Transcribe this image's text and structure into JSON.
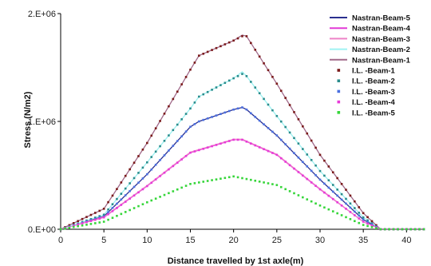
{
  "chart_data": {
    "type": "line",
    "xlabel": "Distance travelled by 1st axle(m)",
    "ylabel": "Stress (N/m2)",
    "xlim": [
      0,
      42
    ],
    "ylim": [
      0,
      2000000
    ],
    "x_ticks": [
      0,
      5,
      10,
      15,
      20,
      25,
      30,
      35,
      40
    ],
    "y_ticks": [
      {
        "value": 0,
        "label": "0.E+00"
      },
      {
        "value": 1000000,
        "label": "1.E+06"
      },
      {
        "value": 2000000,
        "label": "2.E+06"
      }
    ],
    "grid": false,
    "legend_position": "top-right",
    "series": [
      {
        "name": "Nastran-Beam-5",
        "style": "line",
        "color": "#2b2f8f",
        "x": [
          0,
          5,
          10,
          15,
          16,
          20,
          21,
          21.5,
          25,
          30,
          35,
          37,
          42
        ],
        "y": [
          0,
          120000,
          510000,
          950000,
          1000000,
          1110000,
          1130000,
          1110000,
          870000,
          460000,
          90000,
          0,
          0
        ]
      },
      {
        "name": "Nastran-Beam-4",
        "style": "line",
        "color": "#e23ad6",
        "x": [
          0,
          5,
          10,
          15,
          20,
          21,
          25,
          30,
          35,
          37,
          42
        ],
        "y": [
          0,
          110000,
          400000,
          710000,
          830000,
          830000,
          690000,
          370000,
          70000,
          0,
          0
        ]
      },
      {
        "name": "Nastran-Beam-3",
        "style": "line",
        "color": "#ee82c8",
        "x": [
          0,
          5,
          10,
          15,
          20,
          21,
          25,
          30,
          35,
          37,
          42
        ],
        "y": [
          0,
          115000,
          405000,
          715000,
          835000,
          835000,
          695000,
          375000,
          70000,
          0,
          0
        ]
      },
      {
        "name": "Nastran-Beam-2",
        "style": "line",
        "color": "#9ff2f2",
        "x": [
          0,
          5,
          10,
          15,
          16,
          20,
          21,
          21.5,
          25,
          30,
          35,
          37,
          42
        ],
        "y": [
          0,
          135000,
          620000,
          1120000,
          1230000,
          1400000,
          1460000,
          1420000,
          1050000,
          540000,
          110000,
          0,
          0
        ]
      },
      {
        "name": "Nastran-Beam-1",
        "style": "line",
        "color": "#a16a8a",
        "x": [
          0,
          5,
          10,
          15,
          16,
          20,
          21,
          21.5,
          25,
          30,
          35,
          37,
          42
        ],
        "y": [
          0,
          190000,
          800000,
          1480000,
          1610000,
          1750000,
          1800000,
          1790000,
          1350000,
          690000,
          150000,
          0,
          0
        ]
      },
      {
        "name": "I.L. -Beam-1",
        "style": "marker",
        "color": "#7a1a1a",
        "x": [
          0,
          5,
          10,
          15,
          16,
          20,
          21,
          21.5,
          25,
          30,
          35,
          37,
          42
        ],
        "y": [
          0,
          190000,
          800000,
          1480000,
          1610000,
          1750000,
          1790000,
          1790000,
          1350000,
          690000,
          150000,
          0,
          0
        ]
      },
      {
        "name": "I.L. -Beam-2",
        "style": "marker",
        "color": "#2a8c8c",
        "x": [
          0,
          5,
          10,
          15,
          16,
          20,
          21,
          21.5,
          25,
          30,
          35,
          37,
          42
        ],
        "y": [
          0,
          135000,
          620000,
          1120000,
          1230000,
          1400000,
          1440000,
          1420000,
          1050000,
          540000,
          110000,
          0,
          0
        ]
      },
      {
        "name": "I.L. -Beam-3",
        "style": "marker",
        "color": "#4a6fe0",
        "x": [
          0,
          5,
          10,
          15,
          16,
          20,
          21,
          21.5,
          25,
          30,
          35,
          37,
          42
        ],
        "y": [
          0,
          120000,
          510000,
          950000,
          1000000,
          1110000,
          1130000,
          1110000,
          870000,
          460000,
          90000,
          0,
          0
        ]
      },
      {
        "name": "I.L. -Beam-4",
        "style": "marker",
        "color": "#e83ad8",
        "x": [
          0,
          5,
          10,
          15,
          20,
          21,
          25,
          30,
          35,
          37,
          42
        ],
        "y": [
          0,
          110000,
          400000,
          710000,
          830000,
          830000,
          690000,
          370000,
          70000,
          0,
          0
        ]
      },
      {
        "name": "I.L. -Beam-5",
        "style": "marker",
        "color": "#36d63a",
        "x": [
          0,
          5,
          10,
          15,
          20,
          25,
          30,
          35,
          37,
          42
        ],
        "y": [
          0,
          70000,
          250000,
          420000,
          490000,
          410000,
          220000,
          40000,
          0,
          0
        ]
      }
    ]
  }
}
